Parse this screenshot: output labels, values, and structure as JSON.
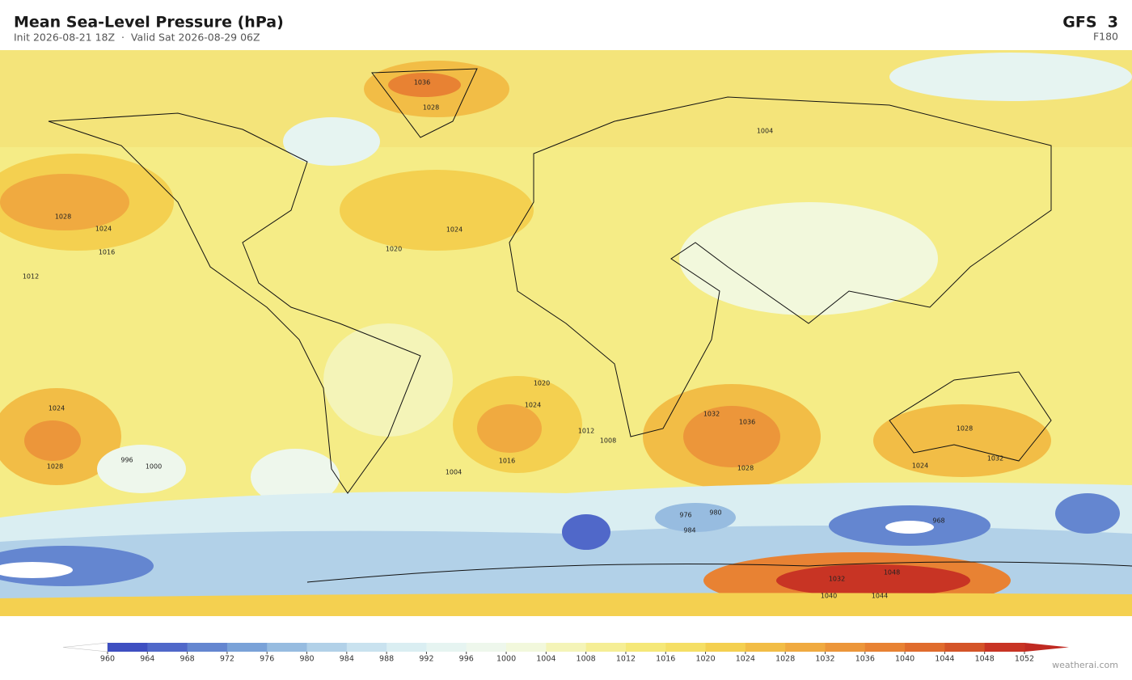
{
  "header": {
    "title": "Mean Sea-Level Pressure  (hPa)",
    "subtitle": "Init 2026-08-21 18Z  ·  Valid Sat 2026-08-29 06Z",
    "model": "GFS  3",
    "forecast_hour": "F180"
  },
  "map": {
    "contour_labels": [
      "1028",
      "1024",
      "1016",
      "1012",
      "1024",
      "1020",
      "1036",
      "1028",
      "1004",
      "1024",
      "1020",
      "1036",
      "1028",
      "1032",
      "1028",
      "1032",
      "1024",
      "1028",
      "1024",
      "976",
      "980",
      "968",
      "984",
      "1048",
      "1044",
      "1040",
      "1032",
      "1000",
      "996",
      "1008",
      "1012",
      "1016",
      "1004"
    ]
  },
  "colorbar": {
    "ticks": [
      960,
      964,
      968,
      972,
      976,
      980,
      984,
      988,
      992,
      996,
      1000,
      1004,
      1008,
      1012,
      1016,
      1020,
      1024,
      1028,
      1032,
      1036,
      1040,
      1044,
      1048,
      1052
    ],
    "colors": [
      "#3e4fc1",
      "#5068c9",
      "#6486d0",
      "#7aa2d8",
      "#97bce0",
      "#b2d1e8",
      "#c9e2ef",
      "#daeef2",
      "#e6f4f1",
      "#eef7ec",
      "#f2f8dc",
      "#f4f4b8",
      "#f5ee95",
      "#f5e878",
      "#f5df65",
      "#f4d050",
      "#f2bd46",
      "#f0aa40",
      "#ec963a",
      "#e88233",
      "#e06c2d",
      "#d45428",
      "#c83424"
    ],
    "under_color": "#ffffff",
    "over_color": "#c02a22"
  },
  "watermark": "weatherai.com"
}
